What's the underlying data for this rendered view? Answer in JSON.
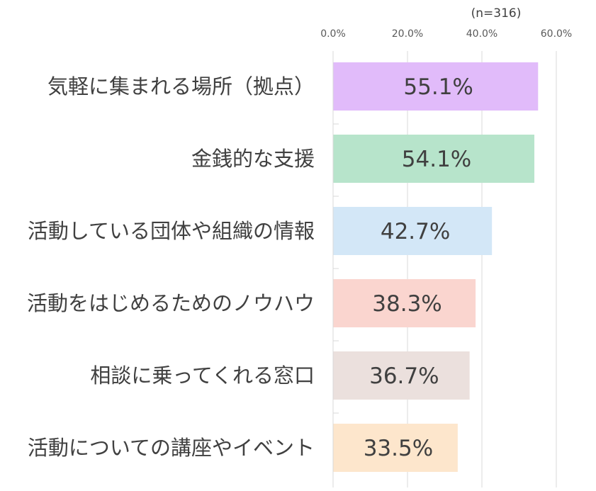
{
  "chart_data": {
    "type": "bar",
    "orientation": "horizontal",
    "note": "(n=316)",
    "categories": [
      "気軽に集まれる場所（拠点）",
      "金銭的な支援",
      "活動している団体や組織の情報",
      "活動をはじめるためのノウハウ",
      "相談に乗ってくれる窓口",
      "活動についての講座やイベント"
    ],
    "values": [
      55.1,
      54.1,
      42.7,
      38.3,
      36.7,
      33.5
    ],
    "data_labels": [
      "55.1%",
      "54.1%",
      "42.7%",
      "38.3%",
      "36.7%",
      "33.5%"
    ],
    "colors": [
      "#E1BBFA",
      "#B7E4CB",
      "#D3E7F7",
      "#FAD5CF",
      "#EBE0DD",
      "#FDE6CC"
    ],
    "xlim": [
      0,
      60
    ],
    "xticks": [
      0,
      20,
      40,
      60
    ],
    "xtick_labels": [
      "0.0%",
      "20.0%",
      "40.0%",
      "60.0%"
    ],
    "x_axis_position": "top",
    "grid": true,
    "legend": "none",
    "xlabel": "",
    "ylabel": ""
  }
}
